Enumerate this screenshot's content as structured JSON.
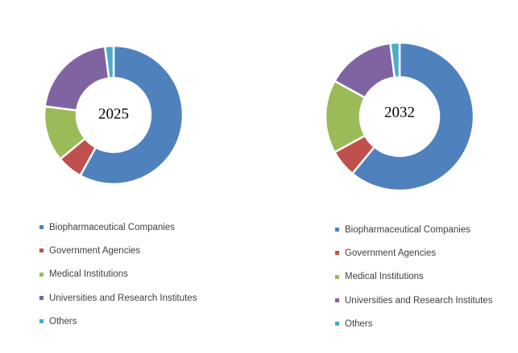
{
  "chart_data": [
    {
      "type": "donut",
      "center_label": "2025",
      "categories": [
        "Biopharmaceutical Companies",
        "Government Agencies",
        "Medical Institutions",
        "Universities and Research Institutes",
        "Others"
      ],
      "values": [
        58,
        6,
        13,
        21,
        2
      ],
      "colors": [
        "#4f81bd",
        "#c0504d",
        "#9bbb59",
        "#8064a2",
        "#4bacc6"
      ],
      "legend_position": "bottom"
    },
    {
      "type": "donut",
      "center_label": "2032",
      "categories": [
        "Biopharmaceutical Companies",
        "Government Agencies",
        "Medical Institutions",
        "Universities and Research Institutes",
        "Others"
      ],
      "values": [
        61,
        6,
        16,
        15,
        2
      ],
      "colors": [
        "#4f81bd",
        "#c0504d",
        "#9bbb59",
        "#8064a2",
        "#4bacc6"
      ],
      "legend_position": "bottom"
    }
  ]
}
